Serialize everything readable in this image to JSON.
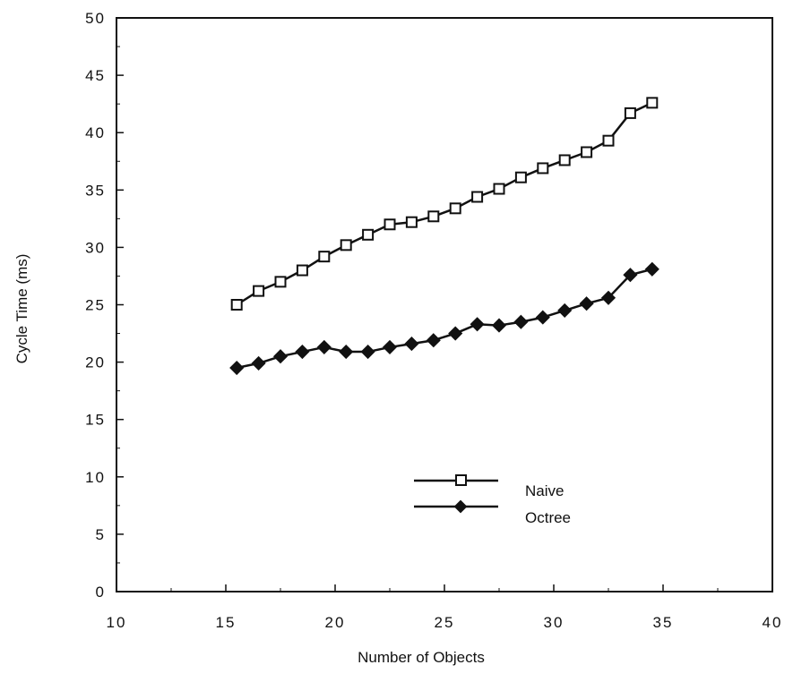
{
  "chart_data": {
    "type": "line",
    "title": "",
    "xlabel": "Number of Objects",
    "ylabel": "Cycle Time (ms)",
    "xlim": [
      10,
      40
    ],
    "ylim": [
      0,
      50
    ],
    "xticks": [
      "10",
      "15",
      "20",
      "25",
      "30",
      "35",
      "40"
    ],
    "yticks": [
      "0",
      "5",
      "10",
      "15",
      "20",
      "25",
      "30",
      "35",
      "40",
      "45",
      "50"
    ],
    "x": [
      15,
      16,
      17,
      18,
      19,
      20,
      21,
      22,
      23,
      24,
      25,
      26,
      27,
      28,
      29,
      30,
      31,
      32,
      33,
      34
    ],
    "series": [
      {
        "name": "Naive",
        "marker": "open-square",
        "values": [
          25.0,
          26.2,
          27.0,
          28.0,
          29.2,
          30.2,
          31.1,
          32.0,
          32.2,
          32.7,
          33.4,
          34.4,
          35.1,
          36.1,
          36.9,
          37.6,
          38.3,
          39.3,
          41.7,
          42.6
        ]
      },
      {
        "name": "Octree",
        "marker": "filled-diamond",
        "values": [
          19.5,
          19.9,
          20.5,
          20.9,
          21.3,
          20.9,
          20.9,
          21.3,
          21.6,
          21.9,
          22.5,
          23.3,
          23.2,
          23.5,
          23.9,
          24.5,
          25.1,
          25.6,
          27.6,
          28.1
        ]
      }
    ],
    "grid": false,
    "legend_position": "center-bottom"
  }
}
